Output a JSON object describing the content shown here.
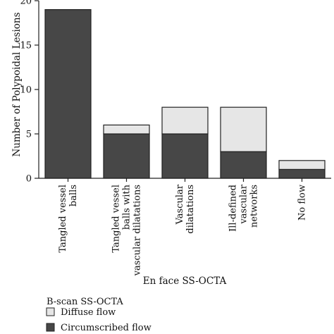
{
  "chart_data": {
    "type": "bar",
    "stacked": true,
    "categories": [
      [
        "Tangled vessel",
        "balls"
      ],
      [
        "Tangled vessel",
        "balls with",
        "vascular dilatations"
      ],
      [
        "Vascular",
        "dilatations"
      ],
      [
        "Ill-defined",
        "vascular",
        "networks"
      ],
      [
        "No flow"
      ]
    ],
    "series": [
      {
        "name": "Circumscribed flow",
        "values": [
          19,
          5,
          5,
          3,
          1
        ],
        "color": "#474747"
      },
      {
        "name": "Diffuse flow",
        "values": [
          0,
          1,
          3,
          5,
          1
        ],
        "color": "#e6e6e6"
      }
    ],
    "ylabel": "Number of Polypoidal Lesions",
    "xlabel": "En face SS-OCTA",
    "ylim": [
      0,
      20
    ],
    "yticks": [
      0,
      5,
      10,
      15,
      20
    ],
    "grid": false,
    "legend": {
      "title": "B-scan SS-OCTA",
      "placement": "bottom-left",
      "order": [
        "Diffuse flow",
        "Circumscribed flow"
      ]
    }
  }
}
